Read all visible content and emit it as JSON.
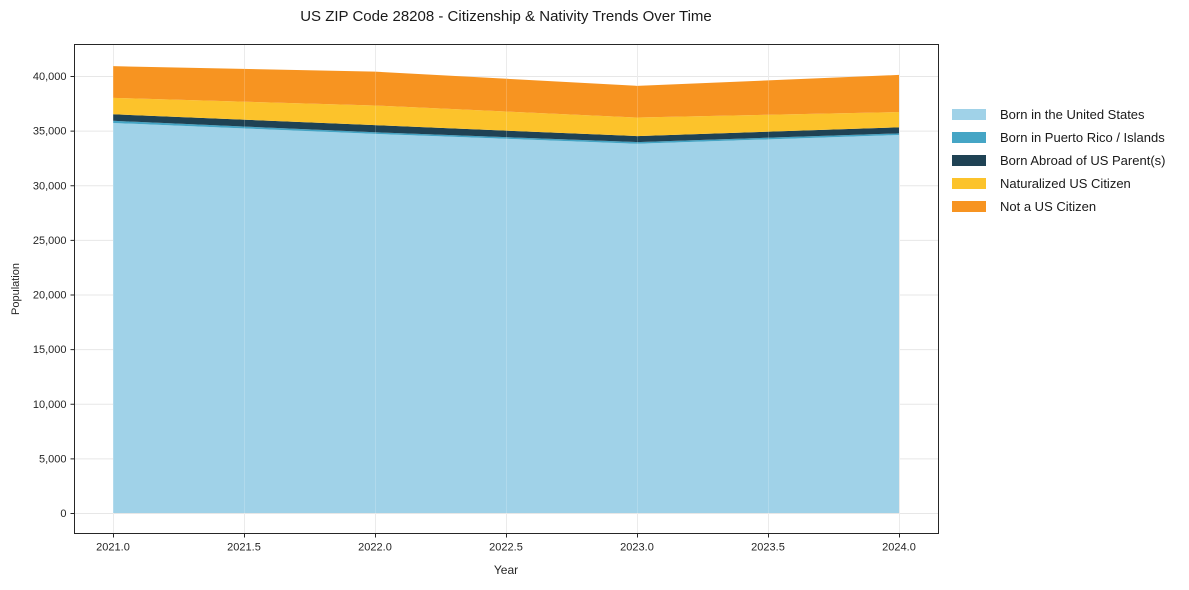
{
  "chart_data": {
    "type": "area",
    "stacked": true,
    "title": "US ZIP Code 28208 - Citizenship & Nativity Trends Over Time",
    "xlabel": "Year",
    "ylabel": "Population",
    "x": [
      2021,
      2022,
      2023,
      2024
    ],
    "series": [
      {
        "name": "Born in the United States",
        "color": "#a0d2e8",
        "values": [
          35700,
          34700,
          33800,
          34600
        ]
      },
      {
        "name": "Born in Puerto Rico / Islands",
        "color": "#45a5c5",
        "values": [
          200,
          150,
          150,
          150
        ]
      },
      {
        "name": "Born Abroad of US Parent(s)",
        "color": "#1f4254",
        "values": [
          600,
          650,
          550,
          550
        ]
      },
      {
        "name": "Naturalized US Citizen",
        "color": "#fcc32b",
        "values": [
          1500,
          1800,
          1700,
          1400
        ]
      },
      {
        "name": "Not a US Citizen",
        "color": "#f79421",
        "values": [
          2900,
          3100,
          2900,
          3400
        ]
      }
    ],
    "stacked_totals": [
      40900,
      40400,
      39100,
      40100
    ],
    "xticks": {
      "values": [
        2021.0,
        2021.5,
        2022.0,
        2022.5,
        2023.0,
        2023.5,
        2024.0
      ],
      "labels": [
        "2021.0",
        "2021.5",
        "2022.0",
        "2022.5",
        "2023.0",
        "2023.5",
        "2024.0"
      ]
    },
    "yticks": {
      "values": [
        0,
        5000,
        10000,
        15000,
        20000,
        25000,
        30000,
        35000,
        40000
      ],
      "labels": [
        "0",
        "5,000",
        "10,000",
        "15,000",
        "20,000",
        "25,000",
        "30,000",
        "35,000",
        "40,000"
      ]
    },
    "xlim": [
      2020.85,
      2024.15
    ],
    "ylim": [
      -2000,
      42900
    ],
    "grid": true,
    "legend_position": "right-outside",
    "colors": {
      "axis": "#262626",
      "grid": "#e7e7e7",
      "text": "#262626",
      "background": "#ffffff"
    }
  }
}
